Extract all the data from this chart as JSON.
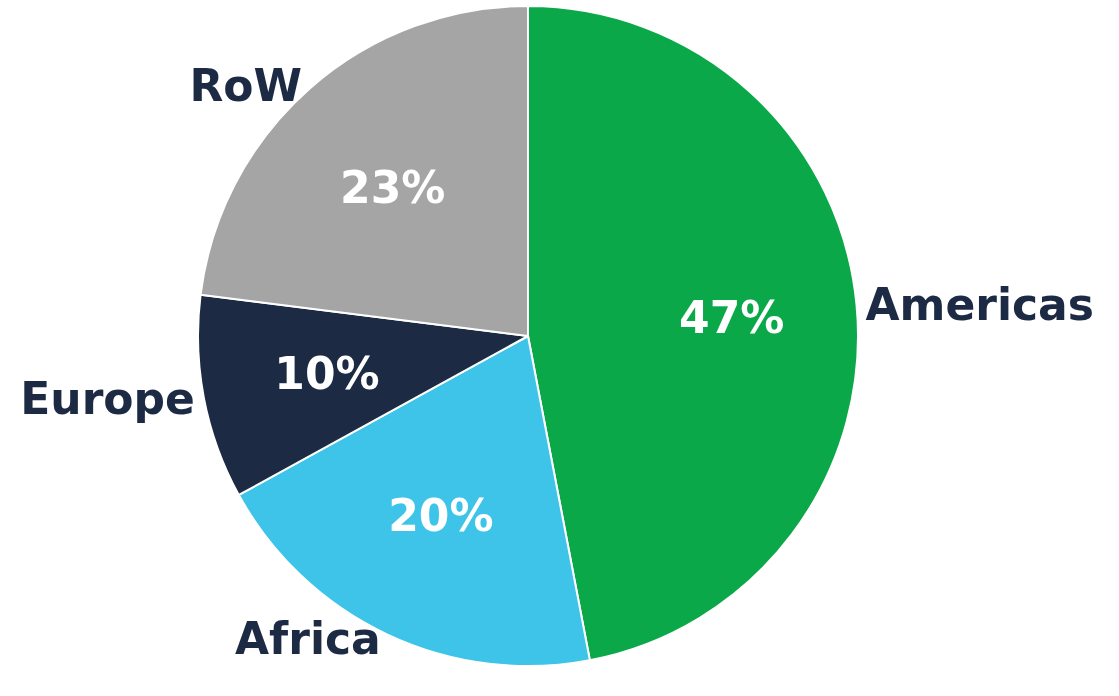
{
  "chart_data": {
    "type": "pie",
    "categories": [
      "Americas",
      "Africa",
      "Europe",
      "RoW"
    ],
    "values": [
      47,
      20,
      10,
      23
    ],
    "value_labels": [
      "47%",
      "20%",
      "10%",
      "23%"
    ],
    "colors": [
      "#0ba84a",
      "#3ec4e8",
      "#1d2a44",
      "#a5a5a5"
    ],
    "legend": false
  }
}
